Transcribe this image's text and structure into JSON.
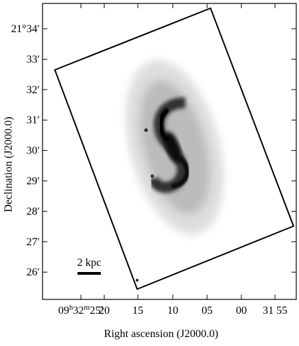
{
  "axes": {
    "x_label": "Right ascension (J2000.0)",
    "y_label": "Declination (J2000.0)",
    "x_ticks": [
      [
        "09",
        "h",
        "32",
        "m",
        "25",
        "s"
      ],
      "20",
      "15",
      "10",
      "05",
      "00",
      "31 55"
    ],
    "y_ticks": [
      "21°34′",
      "33′",
      "32′",
      "31′",
      "30′",
      "29′",
      "28′",
      "27′",
      "26′"
    ]
  },
  "scale_bar": {
    "label": "2 kpc"
  }
}
